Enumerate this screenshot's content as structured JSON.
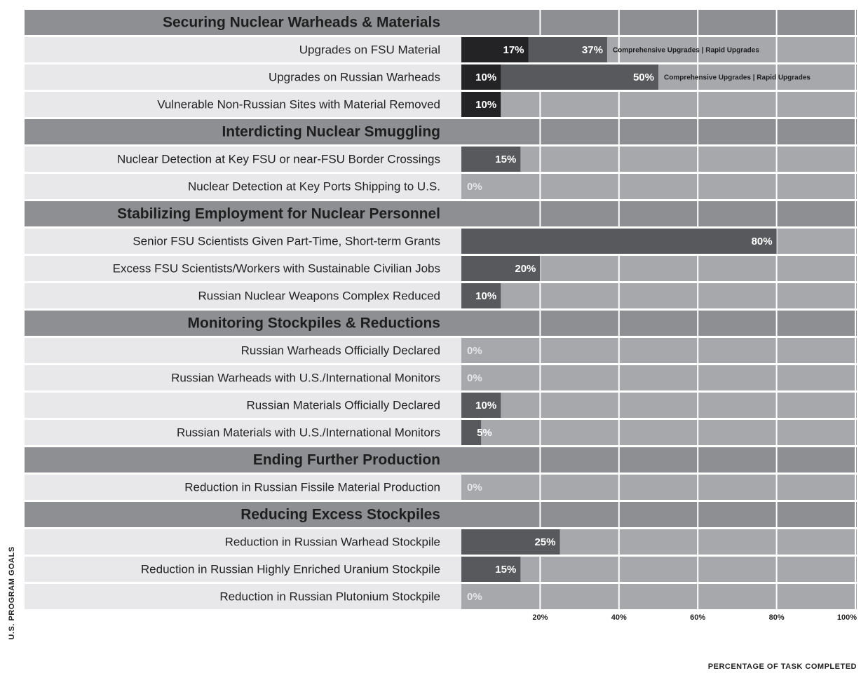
{
  "chart_data": {
    "type": "bar",
    "orientation": "horizontal",
    "ylabel": "U.S. PROGRAM GOALS",
    "xlabel": "PERCENTAGE OF TASK COMPLETED",
    "bar_note": "Comprehensive Upgrades | Rapid Upgrades",
    "xlim": [
      0,
      100
    ],
    "xticks": [
      {
        "value": 20,
        "label": "20%"
      },
      {
        "value": 40,
        "label": "40%"
      },
      {
        "value": 60,
        "label": "60%"
      },
      {
        "value": 80,
        "label": "80%"
      },
      {
        "value": 100,
        "label": "100%"
      }
    ],
    "grid": true,
    "groups": [
      {
        "title": "Securing Nuclear Warheads & Materials",
        "categories": [
          "Upgrades on FSU Material",
          "Upgrades on Russian Warheads",
          "Vulnerable Non-Russian Sites with Material Removed"
        ],
        "series": [
          {
            "color": "#58595c",
            "values": [
              37,
              50,
              null
            ],
            "value_labels": [
              "37%",
              "50%",
              null
            ]
          },
          {
            "color": "#232325",
            "values": [
              17,
              10,
              10
            ],
            "value_labels": [
              "17%",
              "10%",
              "10%"
            ]
          }
        ]
      },
      {
        "title": "Interdicting Nuclear Smuggling",
        "categories": [
          "Nuclear Detection at Key FSU or near-FSU Border Crossings",
          "Nuclear Detection at Key Ports Shipping to U.S."
        ],
        "series": [
          {
            "color": "#58595c",
            "values": [
              15,
              0
            ],
            "value_labels": [
              "15%",
              "0%"
            ]
          }
        ]
      },
      {
        "title": "Stabilizing Employment for Nuclear Personnel",
        "categories": [
          "Senior FSU Scientists Given Part-Time, Short-term Grants",
          "Excess FSU Scientists/Workers with Sustainable Civilian Jobs",
          "Russian Nuclear Weapons Complex Reduced"
        ],
        "series": [
          {
            "color": "#58595c",
            "values": [
              80,
              20,
              10
            ],
            "value_labels": [
              "80%",
              "20%",
              "10%"
            ]
          }
        ]
      },
      {
        "title": "Monitoring Stockpiles & Reductions",
        "categories": [
          "Russian Warheads Officially Declared",
          "Russian Warheads with U.S./International Monitors",
          "Russian Materials Officially Declared",
          "Russian Materials with U.S./International Monitors"
        ],
        "series": [
          {
            "color": "#58595c",
            "values": [
              0,
              0,
              10,
              5
            ],
            "value_labels": [
              "0%",
              "0%",
              "10%",
              "5%"
            ]
          }
        ]
      },
      {
        "title": "Ending Further Production",
        "categories": [
          "Reduction in Russian Fissile Material Production"
        ],
        "series": [
          {
            "color": "#58595c",
            "values": [
              0
            ],
            "value_labels": [
              "0%"
            ]
          }
        ]
      },
      {
        "title": "Reducing Excess Stockpiles",
        "categories": [
          "Reduction in Russian Warhead Stockpile",
          "Reduction in Russian Highly Enriched Uranium Stockpile",
          "Reduction in Russian Plutonium Stockpile"
        ],
        "series": [
          {
            "color": "#58595c",
            "values": [
              25,
              15,
              0
            ],
            "value_labels": [
              "25%",
              "15%",
              "0%"
            ]
          }
        ]
      }
    ]
  }
}
